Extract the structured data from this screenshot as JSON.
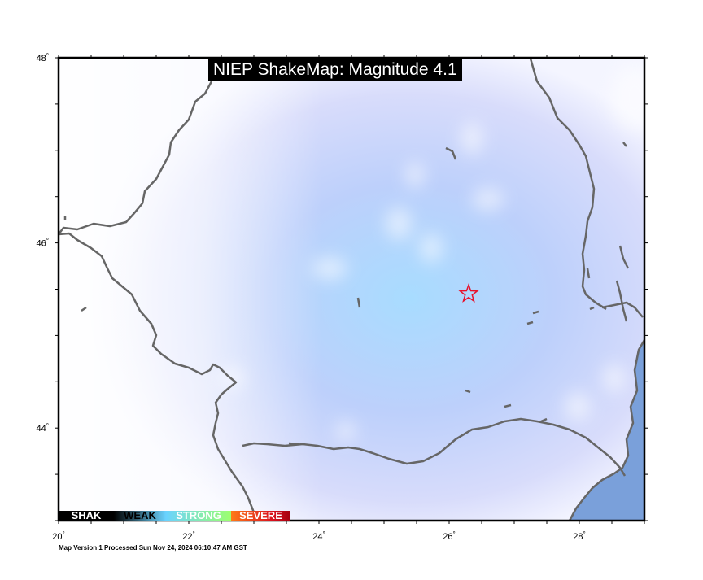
{
  "map": {
    "title": "NIEP ShakeMap: Magnitude 4.1",
    "footer": "Map Version 1 Processed Sun Nov 24, 2024 06:10:47 AM GST",
    "lat_ticks": [
      "48",
      "46",
      "44"
    ],
    "lon_ticks": [
      "20",
      "22",
      "24",
      "26",
      "28"
    ],
    "degree_symbol": "°",
    "extent": {
      "lon_min": 20,
      "lon_max": 29,
      "lat_min": 43,
      "lat_max": 48
    },
    "epicenter": {
      "lon": 26.3,
      "lat": 45.45,
      "icon": "star-icon",
      "color": "#e8102a"
    },
    "legend": [
      {
        "label": "SHAKING",
        "shown": "SHAK",
        "color": "#000000",
        "text_color": "#ffffff"
      },
      {
        "label": "WEAK",
        "color": "#6ad3ff",
        "text_color": "#000000"
      },
      {
        "label": "STRONG",
        "color": "#9dff6e",
        "text_color": "#ffffff"
      },
      {
        "label": "SEVERE",
        "color": "#ff7a18",
        "text_color": "#ffffff"
      }
    ],
    "colors": {
      "border": "#666666",
      "sea": "#7aa0da",
      "intensity_max": "#a8dcff",
      "intensity_min": "#c9ccf7"
    }
  }
}
